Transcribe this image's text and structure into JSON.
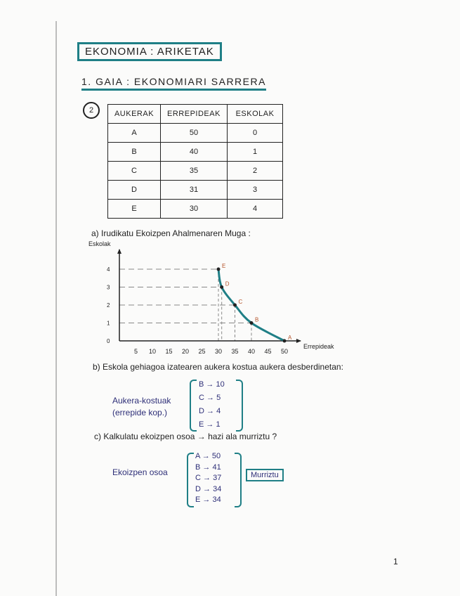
{
  "title": "EKONOMIA : ARIKETAK",
  "subtitle": "1. GAIA : EKONOMIARI SARRERA",
  "exercise_number": "2",
  "table": {
    "headers": [
      "AUKERAK",
      "ERREPIDEAK",
      "ESKOLAK"
    ],
    "rows": [
      [
        "A",
        "50",
        "0"
      ],
      [
        "B",
        "40",
        "1"
      ],
      [
        "C",
        "35",
        "2"
      ],
      [
        "D",
        "31",
        "3"
      ],
      [
        "E",
        "30",
        "4"
      ]
    ]
  },
  "part_a": "a) Irudikatu Ekoizpen Ahalmenaren Muga :",
  "chart_data": {
    "type": "line",
    "xlabel": "Errepideak",
    "ylabel": "Eskolak",
    "x_ticks": [
      "5",
      "10",
      "15",
      "20",
      "25",
      "30",
      "35",
      "40",
      "45",
      "50"
    ],
    "y_ticks": [
      "0",
      "1",
      "2",
      "3",
      "4"
    ],
    "xlim": [
      0,
      50
    ],
    "ylim": [
      0,
      4
    ],
    "points": [
      {
        "label": "A",
        "x": 50,
        "y": 0
      },
      {
        "label": "B",
        "x": 40,
        "y": 1
      },
      {
        "label": "C",
        "x": 35,
        "y": 2
      },
      {
        "label": "D",
        "x": 31,
        "y": 3
      },
      {
        "label": "E",
        "x": 30,
        "y": 4
      }
    ],
    "curve_color": "#1f7f86",
    "guide_lines": "dashed"
  },
  "part_b": "b) Eskola gehiagoa izatearen aukera kostua aukera desberdinetan:",
  "opportunity_costs": {
    "label": "Aukera-kostuak",
    "unit": "(errepide kop.)",
    "items": [
      {
        "option": "B",
        "value": "10"
      },
      {
        "option": "C",
        "value": "5"
      },
      {
        "option": "D",
        "value": "4"
      },
      {
        "option": "E",
        "value": "1"
      }
    ]
  },
  "part_c": "c) Kalkulatu ekoizpen osoa → hazi ala murriztu ?",
  "total_production": {
    "label": "Ekoizpen osoa",
    "items": [
      {
        "option": "A",
        "value": "50"
      },
      {
        "option": "B",
        "value": "41"
      },
      {
        "option": "C",
        "value": "37"
      },
      {
        "option": "D",
        "value": "34"
      },
      {
        "option": "E",
        "value": "34"
      }
    ],
    "conclusion": "Murriztu"
  },
  "page_number": "1",
  "colors": {
    "accent": "#1f7f86",
    "ink": "#222222",
    "pen_blue": "#2e2f78",
    "point_label": "#b5542a"
  }
}
